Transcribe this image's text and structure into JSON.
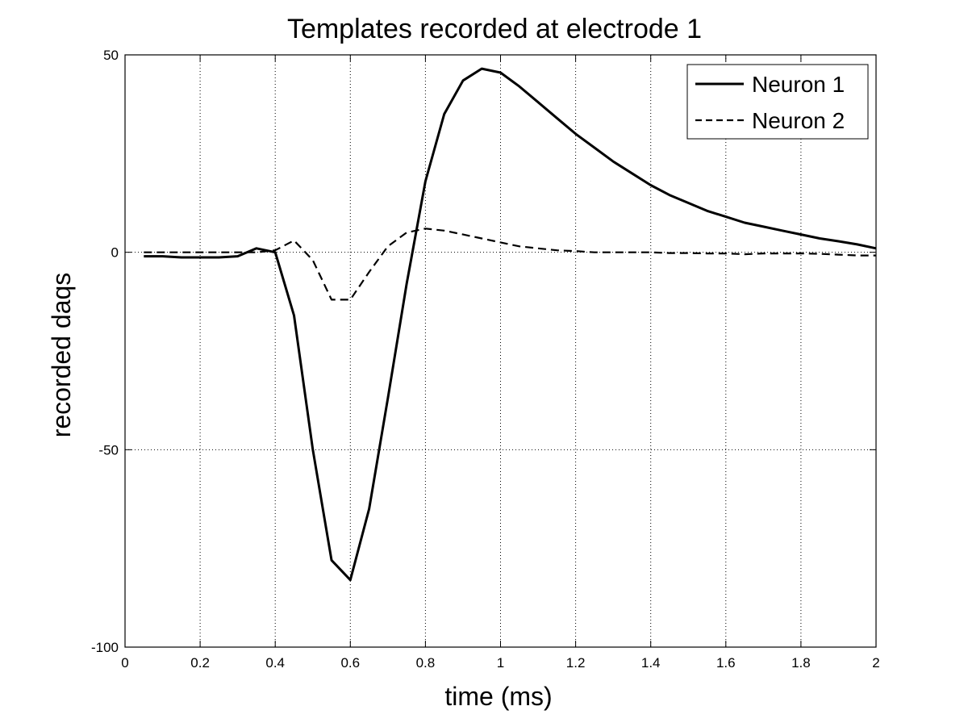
{
  "chart_data": {
    "type": "line",
    "title": "Templates recorded at electrode 1",
    "xlabel": "time (ms)",
    "ylabel": "recorded daqs",
    "xlim": [
      0,
      2
    ],
    "ylim": [
      -100,
      50
    ],
    "x_ticks": [
      0,
      0.2,
      0.4,
      0.6,
      0.8,
      1,
      1.2,
      1.4,
      1.6,
      1.8,
      2
    ],
    "x_tick_labels": [
      "0",
      "0.2",
      "0.4",
      "0.6",
      "0.8",
      "1",
      "1.2",
      "1.4",
      "1.6",
      "1.8",
      "2"
    ],
    "y_ticks": [
      50,
      0,
      -50,
      -100
    ],
    "y_tick_labels": [
      "50",
      "0",
      "-50",
      "-100"
    ],
    "grid": true,
    "legend_position": "top-right",
    "series": [
      {
        "name": "Neuron 1",
        "line_style": "solid",
        "color": "#000000",
        "x": [
          0.05,
          0.1,
          0.15,
          0.2,
          0.25,
          0.3,
          0.35,
          0.4,
          0.45,
          0.5,
          0.55,
          0.6,
          0.65,
          0.7,
          0.75,
          0.8,
          0.85,
          0.9,
          0.95,
          1.0,
          1.05,
          1.1,
          1.15,
          1.2,
          1.25,
          1.3,
          1.35,
          1.4,
          1.45,
          1.5,
          1.55,
          1.6,
          1.65,
          1.7,
          1.75,
          1.8,
          1.85,
          1.9,
          1.95,
          2.0
        ],
        "y": [
          -1,
          -1,
          -1.3,
          -1.3,
          -1.3,
          -1,
          1,
          0,
          -16,
          -50,
          -78,
          -83,
          -65,
          -37,
          -8,
          18,
          35,
          43.5,
          46.5,
          45.5,
          42,
          38,
          34,
          30,
          26.5,
          23,
          20,
          17,
          14.5,
          12.5,
          10.5,
          9,
          7.5,
          6.5,
          5.5,
          4.5,
          3.5,
          2.8,
          2,
          1
        ]
      },
      {
        "name": "Neuron 2",
        "line_style": "dashed",
        "color": "#000000",
        "x": [
          0.05,
          0.1,
          0.15,
          0.2,
          0.25,
          0.3,
          0.35,
          0.4,
          0.45,
          0.5,
          0.55,
          0.6,
          0.65,
          0.7,
          0.75,
          0.8,
          0.85,
          0.9,
          0.95,
          1.0,
          1.05,
          1.1,
          1.15,
          1.2,
          1.25,
          1.3,
          1.35,
          1.4,
          1.45,
          1.5,
          1.55,
          1.6,
          1.65,
          1.7,
          1.75,
          1.8,
          1.85,
          1.9,
          1.95,
          2.0
        ],
        "y": [
          0,
          0,
          0,
          0,
          0,
          0,
          0,
          0.5,
          3,
          -2,
          -12,
          -12,
          -5,
          1.5,
          5,
          6,
          5.5,
          4.5,
          3.5,
          2.5,
          1.5,
          1,
          0.5,
          0.3,
          0,
          0,
          0,
          0,
          -0.2,
          -0.2,
          -0.3,
          -0.3,
          -0.5,
          -0.3,
          -0.3,
          -0.3,
          -0.4,
          -0.6,
          -0.8,
          -0.8
        ]
      }
    ]
  }
}
